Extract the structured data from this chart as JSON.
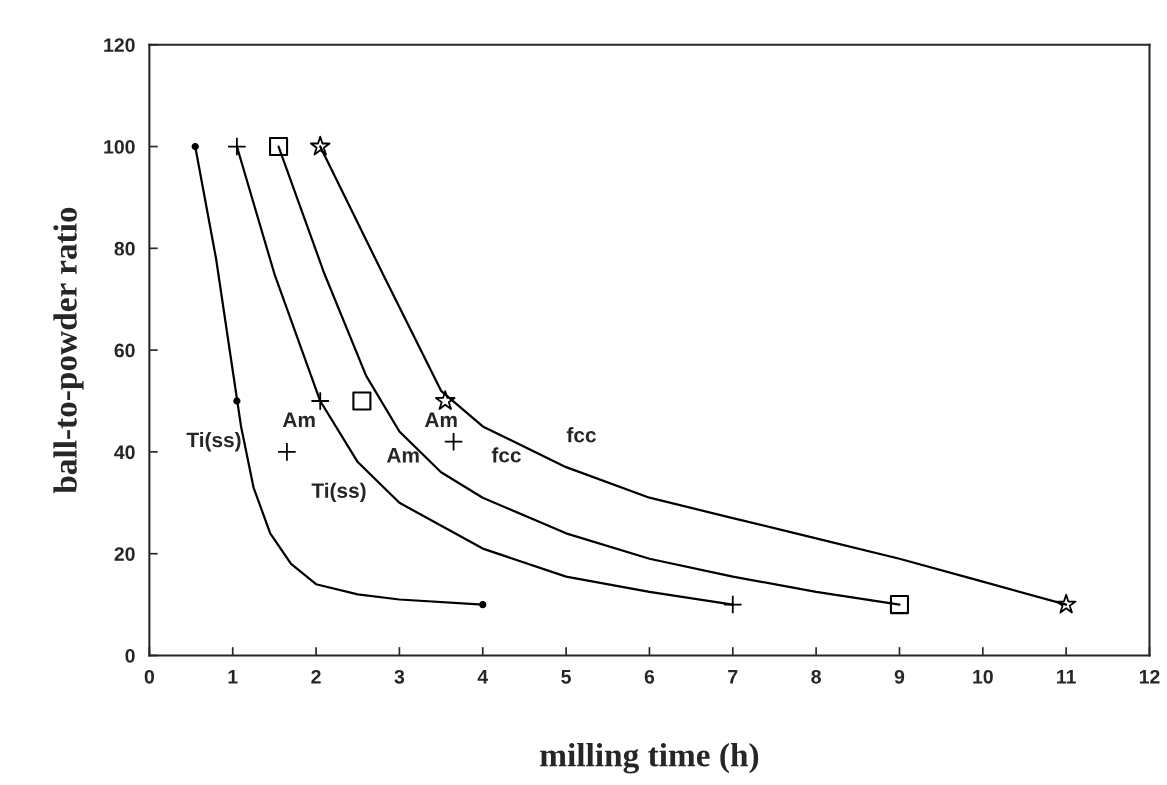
{
  "chart_data": {
    "type": "line",
    "xlabel": "milling time (h)",
    "ylabel": "ball-to-powder ratio",
    "xlim": [
      0,
      12
    ],
    "xticks": [
      0,
      1,
      2,
      3,
      4,
      5,
      6,
      7,
      8,
      9,
      10,
      11,
      12
    ],
    "ylim": [
      0,
      120
    ],
    "yticks": [
      0,
      20,
      40,
      60,
      80,
      100,
      120
    ],
    "grid": false,
    "legend": false,
    "series": [
      {
        "color": "#000000",
        "marker": "none",
        "x": [
          0.55,
          0.8,
          1.0,
          1.1,
          1.25,
          1.45,
          1.7,
          2.0,
          2.5,
          3.0,
          4.0
        ],
        "values": [
          100,
          78,
          56,
          45,
          33,
          24,
          18,
          14,
          12,
          11,
          10
        ]
      },
      {
        "color": "#000000",
        "marker": "none",
        "x": [
          1.05,
          1.5,
          2.05,
          2.5,
          3.0,
          4.0,
          5.0,
          6.0,
          7.0
        ],
        "values": [
          100,
          75,
          50,
          38,
          30,
          21,
          15.5,
          12.5,
          10
        ]
      },
      {
        "color": "#000000",
        "marker": "none",
        "x": [
          1.55,
          2.1,
          2.6,
          3.0,
          3.5,
          4.0,
          5.0,
          6.0,
          7.0,
          8.0,
          9.0
        ],
        "values": [
          100,
          75,
          55,
          44,
          36,
          31,
          24,
          19,
          15.5,
          12.5,
          10
        ]
      },
      {
        "color": "#000000",
        "marker": "none",
        "x": [
          2.05,
          2.8,
          3.5,
          4.0,
          5.0,
          6.0,
          7.0,
          8.0,
          9.0,
          10.0,
          11.0
        ],
        "values": [
          100,
          75,
          52,
          45,
          37,
          31,
          27,
          23,
          19,
          14.5,
          10
        ]
      },
      {
        "type": "scatter",
        "color": "#000000",
        "marker": "circle",
        "x": [
          0.55,
          1.05,
          4.0
        ],
        "values": [
          100,
          50,
          10
        ]
      },
      {
        "type": "scatter",
        "color": "#000000",
        "marker": "cross",
        "x": [
          1.05,
          2.05,
          7.0
        ],
        "values": [
          100,
          50,
          10
        ]
      },
      {
        "type": "scatter",
        "color": "#000000",
        "marker": "square",
        "x": [
          1.55,
          2.55,
          9.0
        ],
        "values": [
          100,
          50,
          10
        ]
      },
      {
        "type": "scatter",
        "color": "#000000",
        "marker": "star",
        "x": [
          2.05,
          3.55,
          11.0
        ],
        "values": [
          100,
          50,
          10
        ]
      },
      {
        "type": "scatter",
        "color": "#000000",
        "marker": "cross",
        "x": [
          1.65,
          3.65
        ],
        "values": [
          40,
          42
        ]
      }
    ],
    "annotations": [
      "Ti(ss)",
      "Am",
      "Ti(ss)",
      "Am",
      "Am",
      "fcc",
      "fcc"
    ]
  }
}
